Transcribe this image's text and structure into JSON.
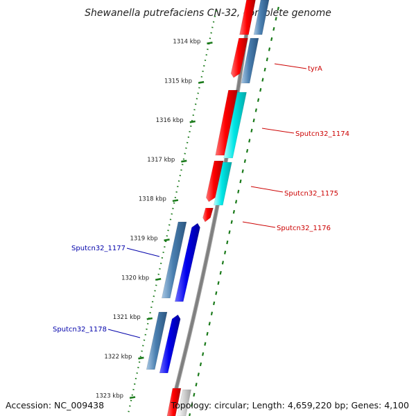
{
  "title": "Shewanella putrefaciens CN-32, complete genome",
  "footer": {
    "accession": "Accession: NC_009438",
    "summary": "Topology: circular; Length: 4,659,220 bp; Genes: 4,100"
  },
  "ticks": [
    {
      "kbp": 1314,
      "label": "1314 kbp"
    },
    {
      "kbp": 1315,
      "label": "1315 kbp"
    },
    {
      "kbp": 1316,
      "label": "1316 kbp"
    },
    {
      "kbp": 1317,
      "label": "1317 kbp"
    },
    {
      "kbp": 1318,
      "label": "1318 kbp"
    },
    {
      "kbp": 1319,
      "label": "1319 kbp"
    },
    {
      "kbp": 1320,
      "label": "1320 kbp"
    },
    {
      "kbp": 1321,
      "label": "1321 kbp"
    },
    {
      "kbp": 1322,
      "label": "1322 kbp"
    },
    {
      "kbp": 1323,
      "label": "1323 kbp"
    }
  ],
  "labels": [
    {
      "name": "tyrA",
      "color": "#cc0000",
      "side": "right"
    },
    {
      "name": "Sputcn32_1174",
      "color": "#cc0000",
      "side": "right"
    },
    {
      "name": "Sputcn32_1175",
      "color": "#cc0000",
      "side": "right"
    },
    {
      "name": "Sputcn32_1176",
      "color": "#cc0000",
      "side": "right"
    },
    {
      "name": "Sputcn32_1177",
      "color": "#0000aa",
      "side": "left"
    },
    {
      "name": "Sputcn32_1178",
      "color": "#0000aa",
      "side": "left"
    }
  ],
  "colors": {
    "forward_gene": "#ff0000",
    "forward_cds": "#00e5e5",
    "reverse_gene": "#0000ee",
    "reverse_cds": "#4a7fb0",
    "backbone": "#808080",
    "ticks": "#1a7a1a"
  }
}
